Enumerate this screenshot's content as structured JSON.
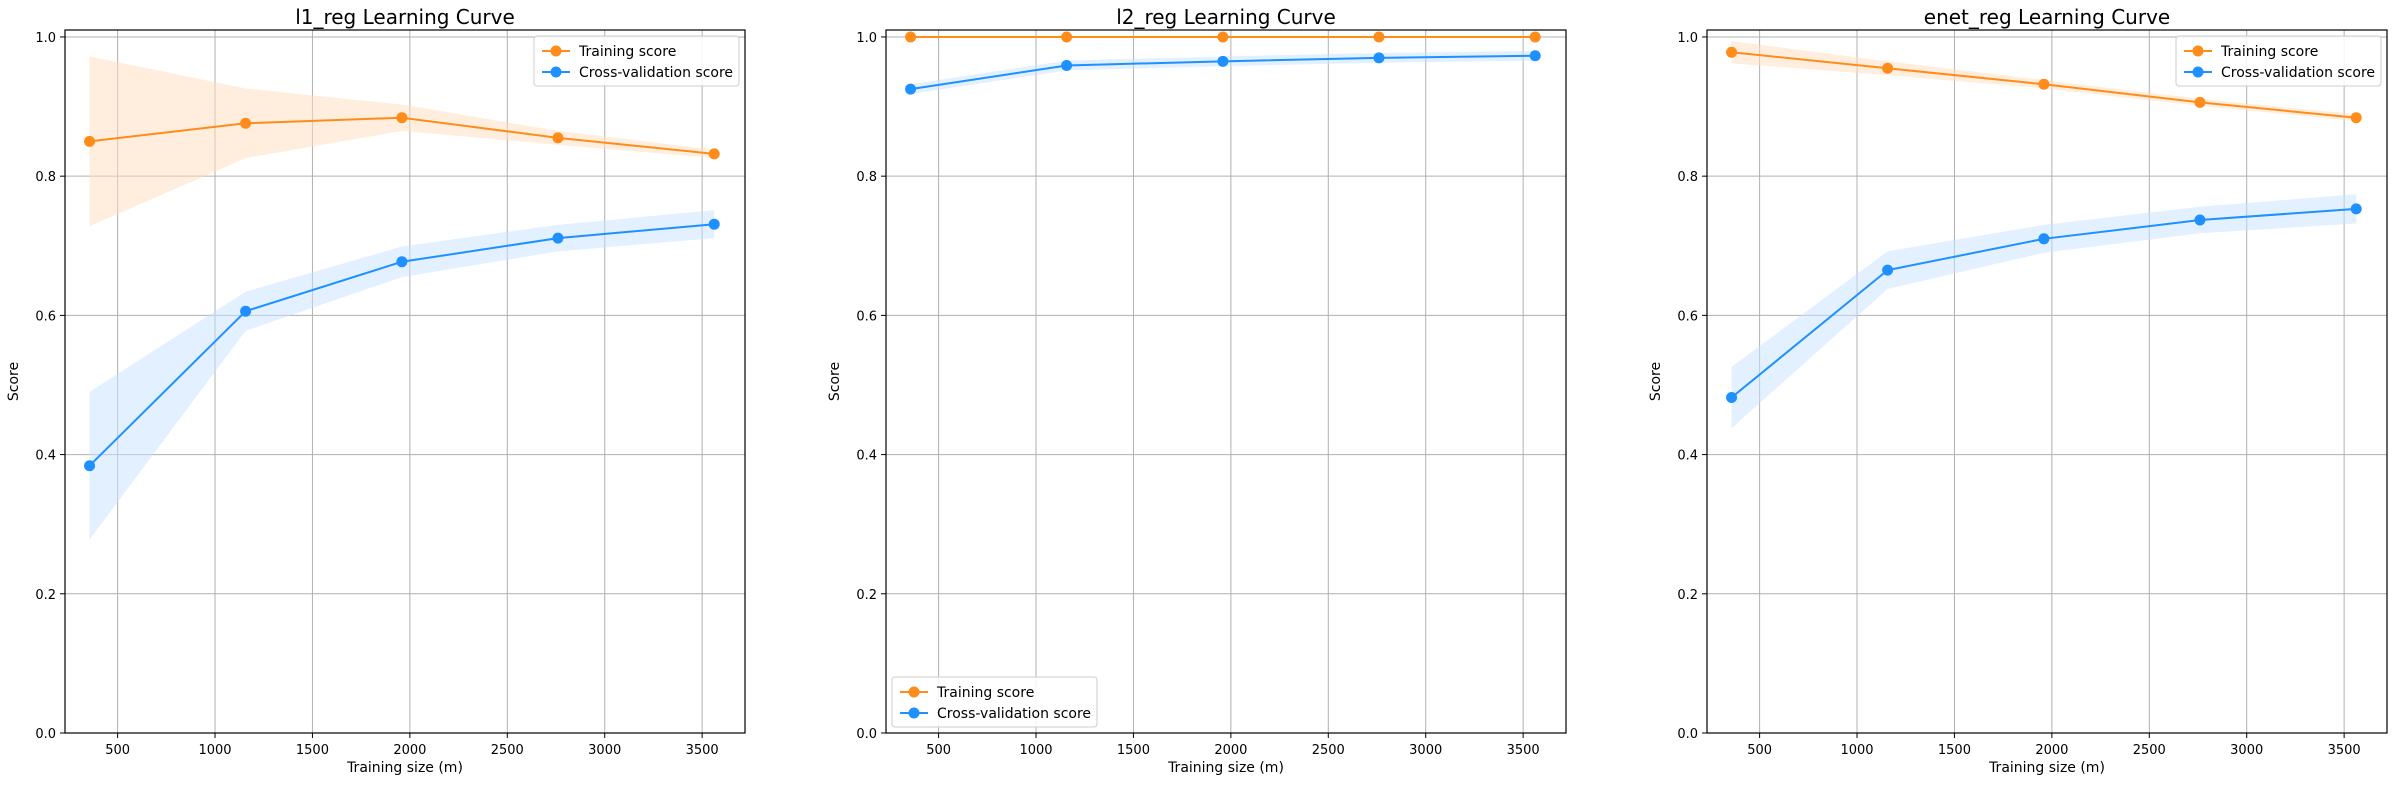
{
  "chart_data": [
    {
      "type": "line",
      "title": "l1_reg Learning Curve",
      "xlabel": "Training size (m)",
      "ylabel": "Score",
      "xlim": [
        230,
        3720
      ],
      "ylim": [
        0.0,
        1.01
      ],
      "xticks": [
        500,
        1000,
        1500,
        2000,
        2500,
        3000,
        3500
      ],
      "yticks": [
        0.0,
        0.2,
        0.4,
        0.6,
        0.8,
        1.0
      ],
      "grid": true,
      "legend_position": "top-right",
      "x": [
        356,
        1157,
        1959,
        2760,
        3562
      ],
      "series": [
        {
          "name": "Training score",
          "color": "#ff8c1a",
          "band_color": "#ffddbb",
          "values": [
            0.85,
            0.876,
            0.884,
            0.855,
            0.832
          ],
          "lower": [
            0.728,
            0.826,
            0.865,
            0.845,
            0.826
          ],
          "upper": [
            0.972,
            0.926,
            0.903,
            0.865,
            0.838
          ]
        },
        {
          "name": "Cross-validation score",
          "color": "#1e90ff",
          "band_color": "#c6e2ff",
          "values": [
            0.384,
            0.606,
            0.677,
            0.711,
            0.731
          ],
          "lower": [
            0.278,
            0.578,
            0.655,
            0.692,
            0.711
          ],
          "upper": [
            0.49,
            0.634,
            0.699,
            0.73,
            0.751
          ]
        }
      ]
    },
    {
      "type": "line",
      "title": "l2_reg Learning Curve",
      "xlabel": "Training size (m)",
      "ylabel": "Score",
      "xlim": [
        230,
        3720
      ],
      "ylim": [
        0.0,
        1.01
      ],
      "xticks": [
        500,
        1000,
        1500,
        2000,
        2500,
        3000,
        3500
      ],
      "yticks": [
        0.0,
        0.2,
        0.4,
        0.6,
        0.8,
        1.0
      ],
      "grid": true,
      "legend_position": "bottom-left",
      "x": [
        356,
        1157,
        1959,
        2760,
        3562
      ],
      "series": [
        {
          "name": "Training score",
          "color": "#ff8c1a",
          "band_color": "#ffddbb",
          "values": [
            1.0,
            1.0,
            1.0,
            1.0,
            1.0
          ],
          "lower": [
            0.999,
            0.999,
            0.999,
            0.999,
            0.999
          ],
          "upper": [
            1.0,
            1.0,
            1.0,
            1.0,
            1.0
          ]
        },
        {
          "name": "Cross-validation score",
          "color": "#1e90ff",
          "band_color": "#c6e2ff",
          "values": [
            0.925,
            0.959,
            0.965,
            0.97,
            0.973
          ],
          "lower": [
            0.918,
            0.952,
            0.958,
            0.963,
            0.966
          ],
          "upper": [
            0.932,
            0.966,
            0.972,
            0.977,
            0.98
          ]
        }
      ]
    },
    {
      "type": "line",
      "title": "enet_reg Learning Curve",
      "xlabel": "Training size (m)",
      "ylabel": "Score",
      "xlim": [
        230,
        3720
      ],
      "ylim": [
        0.0,
        1.01
      ],
      "xticks": [
        500,
        1000,
        1500,
        2000,
        2500,
        3000,
        3500
      ],
      "yticks": [
        0.0,
        0.2,
        0.4,
        0.6,
        0.8,
        1.0
      ],
      "grid": true,
      "legend_position": "top-right",
      "x": [
        356,
        1157,
        1959,
        2760,
        3562
      ],
      "series": [
        {
          "name": "Training score",
          "color": "#ff8c1a",
          "band_color": "#ffddbb",
          "values": [
            0.978,
            0.955,
            0.932,
            0.906,
            0.884
          ],
          "lower": [
            0.962,
            0.945,
            0.926,
            0.901,
            0.879
          ],
          "upper": [
            0.994,
            0.965,
            0.938,
            0.911,
            0.889
          ]
        },
        {
          "name": "Cross-validation score",
          "color": "#1e90ff",
          "band_color": "#c6e2ff",
          "values": [
            0.482,
            0.665,
            0.71,
            0.737,
            0.753
          ],
          "lower": [
            0.438,
            0.638,
            0.69,
            0.718,
            0.732
          ],
          "upper": [
            0.526,
            0.692,
            0.73,
            0.756,
            0.774
          ]
        }
      ]
    }
  ]
}
